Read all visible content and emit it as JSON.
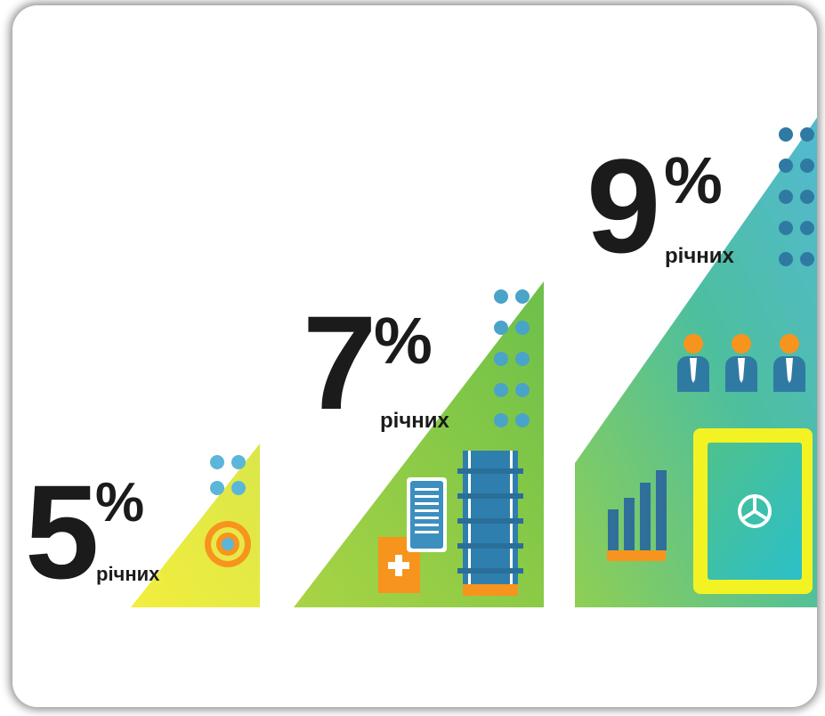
{
  "tiers": [
    {
      "value": "5",
      "percent_sign": "%",
      "unit": "річних"
    },
    {
      "value": "7",
      "percent_sign": "%",
      "unit": "річних"
    },
    {
      "value": "9",
      "percent_sign": "%",
      "unit": "річних"
    }
  ],
  "colors": {
    "yellow": "#ece83a",
    "lime": "#8dc63f",
    "teal": "#3fb8c5",
    "orange": "#f7941d",
    "blue": "#2f7aa3",
    "light_blue": "#5bb6d9",
    "dark": "#1b1b1b"
  },
  "icons": [
    "target-icon",
    "document-icon",
    "plus-icon",
    "coin-stack-icon",
    "people-icon",
    "bar-chart-icon",
    "safe-icon"
  ]
}
